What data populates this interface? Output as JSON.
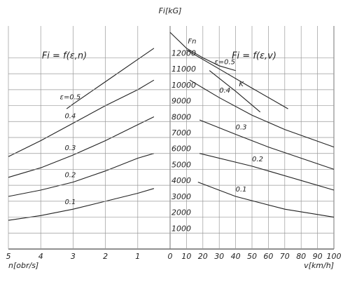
{
  "chart_data": [
    {
      "type": "line",
      "title": "Fi = f(ε,n)",
      "x_label": "n[obr/s]",
      "xlim": [
        5,
        0
      ],
      "xticks": [
        5,
        4,
        3,
        2,
        1
      ],
      "ylim": [
        0,
        14000
      ],
      "grid": true,
      "series": [
        {
          "name": "ε=0.5",
          "color": "#222",
          "x": [
            3.2,
            3,
            2,
            1,
            0.5
          ],
          "values": [
            8800,
            9100,
            10500,
            11900,
            12600
          ]
        },
        {
          "name": "0.4",
          "color": "#222",
          "x": [
            5,
            4,
            3,
            2,
            1,
            0.5
          ],
          "values": [
            5800,
            6800,
            7900,
            9000,
            10000,
            10600
          ]
        },
        {
          "name": "0.3",
          "color": "#222",
          "x": [
            5,
            4,
            3,
            2,
            1,
            0.5
          ],
          "values": [
            4500,
            5100,
            5900,
            6800,
            7800,
            8300
          ]
        },
        {
          "name": "0.2",
          "color": "#222",
          "x": [
            5,
            4,
            3,
            2,
            1,
            0.5
          ],
          "values": [
            3300,
            3700,
            4200,
            4900,
            5700,
            6000
          ]
        },
        {
          "name": "0.1",
          "color": "#222",
          "x": [
            5,
            4,
            3,
            2,
            1,
            0.5
          ],
          "values": [
            1800,
            2100,
            2500,
            3000,
            3500,
            3800
          ]
        }
      ]
    },
    {
      "type": "line",
      "title": "Fi = f(ε,v)",
      "x_label": "v[km/h]",
      "y_label": "Fi[kG]",
      "xlim": [
        0,
        100
      ],
      "xticks": [
        0,
        10,
        20,
        30,
        40,
        50,
        60,
        70,
        80,
        90,
        100
      ],
      "ylim": [
        0,
        14000
      ],
      "yticks": [
        1000,
        2000,
        3000,
        4000,
        5000,
        6000,
        7000,
        8000,
        9000,
        10000,
        11000,
        12000
      ],
      "grid": true,
      "series": [
        {
          "name": "Fn",
          "color": "#222",
          "x": [
            0,
            10,
            20,
            30,
            40
          ],
          "values": [
            13600,
            12600,
            12000,
            11500,
            11200
          ]
        },
        {
          "name": "K",
          "color": "#222",
          "x": [
            24,
            40,
            55
          ],
          "values": [
            11200,
            9900,
            8600
          ]
        },
        {
          "name": "ε=0.5",
          "color": "#222",
          "x": [
            10,
            30,
            50,
            72
          ],
          "values": [
            12500,
            11300,
            10100,
            8800
          ]
        },
        {
          "name": "0.4",
          "color": "#222",
          "x": [
            12,
            30,
            50,
            70,
            100
          ],
          "values": [
            10600,
            9500,
            8400,
            7500,
            6400
          ]
        },
        {
          "name": "0.3",
          "color": "#222",
          "x": [
            18,
            40,
            60,
            80,
            100
          ],
          "values": [
            8100,
            7200,
            6400,
            5700,
            5000
          ]
        },
        {
          "name": "0.2",
          "color": "#222",
          "x": [
            18,
            50,
            80,
            100
          ],
          "values": [
            6000,
            5200,
            4300,
            3700
          ]
        },
        {
          "name": "0.1",
          "color": "#222",
          "x": [
            17,
            40,
            70,
            100
          ],
          "values": [
            4200,
            3300,
            2500,
            2000
          ]
        }
      ]
    }
  ]
}
